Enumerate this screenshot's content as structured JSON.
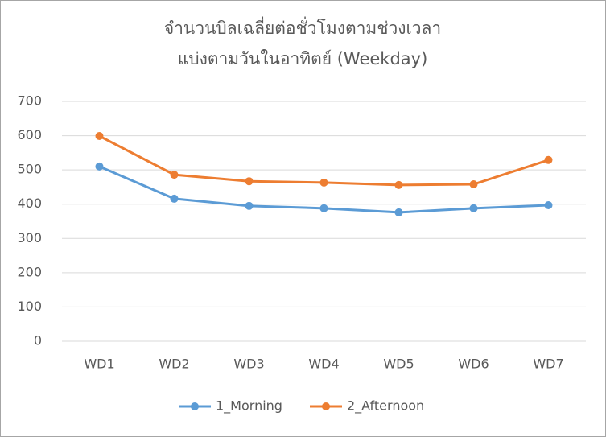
{
  "chart_data": {
    "type": "line",
    "title": [
      "จำนวนบิลเฉลี่ยต่อชั่วโมงตามช่วงเวลา",
      "แบ่งตามวันในอาทิตย์ (Weekday)"
    ],
    "categories": [
      "WD1",
      "WD2",
      "WD3",
      "WD4",
      "WD5",
      "WD6",
      "WD7"
    ],
    "series": [
      {
        "name": "1_Morning",
        "color": "#5b9bd5",
        "values": [
          510,
          416,
          395,
          388,
          376,
          388,
          397
        ]
      },
      {
        "name": "2_Afternoon",
        "color": "#ed7d31",
        "values": [
          599,
          486,
          467,
          463,
          456,
          458,
          529
        ]
      }
    ],
    "ylim": [
      0,
      700
    ],
    "yticks": [
      0,
      100,
      200,
      300,
      400,
      500,
      600,
      700
    ],
    "grid": true,
    "legend": "bottom"
  }
}
